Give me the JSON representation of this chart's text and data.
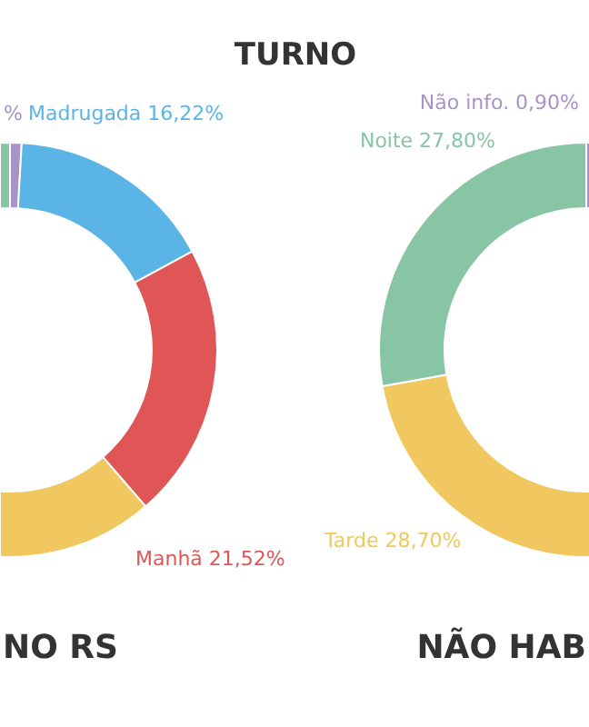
{
  "chart_data": [
    {
      "type": "donut",
      "title": "NO RS",
      "annotations": [
        "TURNO"
      ],
      "categories": [
        null,
        "Madrugada",
        "Manhã",
        null,
        null
      ],
      "values": [
        0.9,
        16.22,
        21.52,
        34.0,
        27.36
      ],
      "colors": [
        "#a893c9",
        "#5ab4e5",
        "#e05556",
        "#f1c75f",
        "#87c5a4"
      ],
      "value_labels": [
        "%",
        "16,22%",
        "21,52%",
        null,
        null
      ]
    },
    {
      "type": "donut",
      "title": "NÃO HAB",
      "categories": [
        "Não info.",
        null,
        null,
        "Tarde",
        "Noite"
      ],
      "values": [
        0.9,
        null,
        null,
        28.7,
        27.8
      ],
      "colors": [
        "#a893c9",
        "#5ab4e5",
        "#e05556",
        "#f1c75f",
        "#87c5a4"
      ],
      "value_labels": [
        "0,90%",
        null,
        null,
        "28,70%",
        "27,80%"
      ]
    }
  ]
}
